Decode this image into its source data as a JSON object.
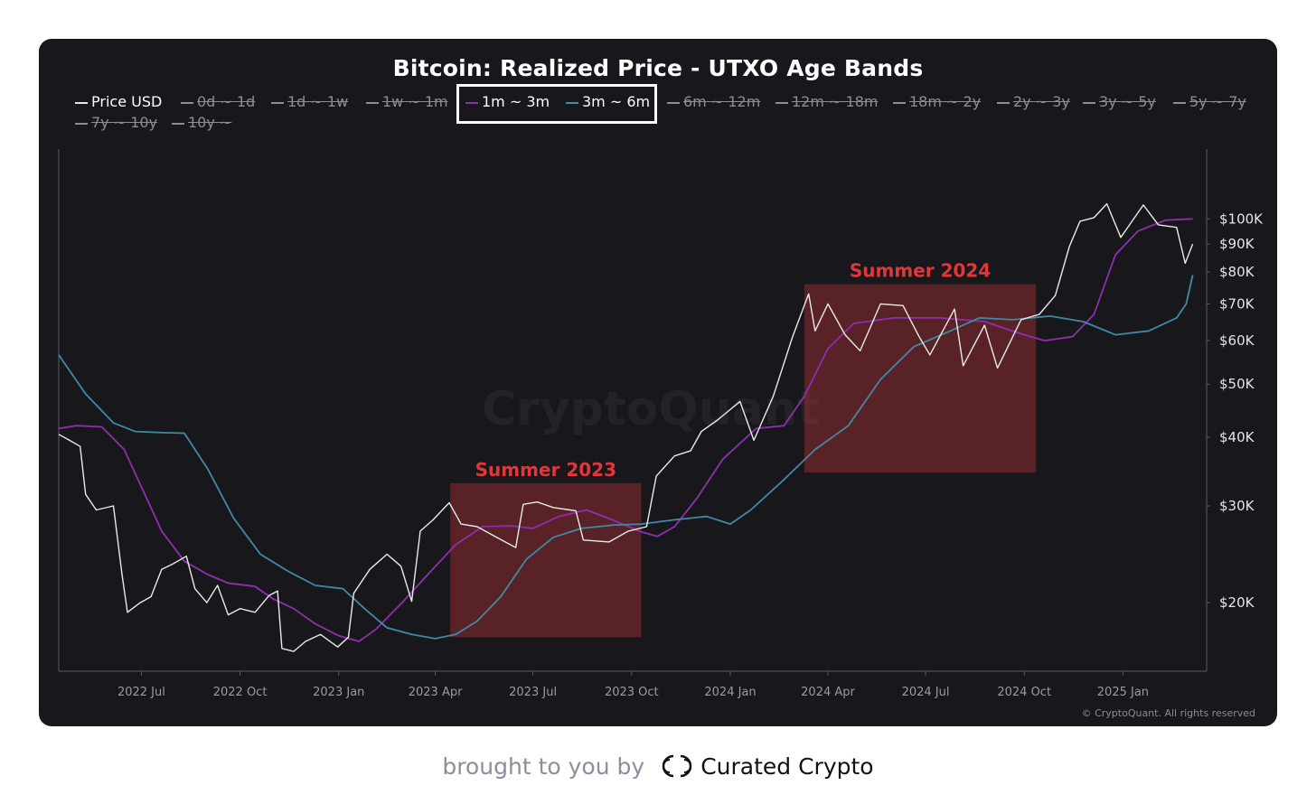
{
  "footer": {
    "prefix": "brought to you by",
    "brand": "Curated Crypto",
    "logo_icon": "curated-crypto-logo"
  },
  "watermark": "CryptoQuant",
  "copyright": "© CryptoQuant. All rights reserved",
  "chart_data": {
    "type": "line",
    "title": "Bitcoin: Realized Price - UTXO Age Bands",
    "y_scale": "log",
    "ylim": [
      15000,
      130000
    ],
    "xlim": [
      "2022-04-15",
      "2025-03-20"
    ],
    "x_ticks": [
      {
        "date": "2022-07-01",
        "label": "2022 Jul"
      },
      {
        "date": "2022-10-01",
        "label": "2022 Oct"
      },
      {
        "date": "2023-01-01",
        "label": "2023 Jan"
      },
      {
        "date": "2023-04-01",
        "label": "2023 Apr"
      },
      {
        "date": "2023-07-01",
        "label": "2023 Jul"
      },
      {
        "date": "2023-10-01",
        "label": "2023 Oct"
      },
      {
        "date": "2024-01-01",
        "label": "2024 Jan"
      },
      {
        "date": "2024-04-01",
        "label": "2024 Apr"
      },
      {
        "date": "2024-07-01",
        "label": "2024 Jul"
      },
      {
        "date": "2024-10-01",
        "label": "2024 Oct"
      },
      {
        "date": "2025-01-01",
        "label": "2025 Jan"
      }
    ],
    "y_ticks": [
      {
        "value": 20000,
        "label": "$20K"
      },
      {
        "value": 30000,
        "label": "$30K"
      },
      {
        "value": 40000,
        "label": "$40K"
      },
      {
        "value": 50000,
        "label": "$50K"
      },
      {
        "value": 60000,
        "label": "$60K"
      },
      {
        "value": 70000,
        "label": "$70K"
      },
      {
        "value": 80000,
        "label": "$80K"
      },
      {
        "value": 90000,
        "label": "$90K"
      },
      {
        "value": 100000,
        "label": "$100K"
      }
    ],
    "legend": [
      {
        "label": "Price USD",
        "color": "#e6e6e6",
        "enabled": true
      },
      {
        "label": "0d ~ 1d",
        "color": "#8c8c94",
        "enabled": false
      },
      {
        "label": "1d ~ 1w",
        "color": "#8c8c94",
        "enabled": false
      },
      {
        "label": "1w ~ 1m",
        "color": "#8c8c94",
        "enabled": false
      },
      {
        "label": "1m ~ 3m",
        "color": "#8e2fb0",
        "enabled": true
      },
      {
        "label": "3m ~ 6m",
        "color": "#3f8aa6",
        "enabled": true
      },
      {
        "label": "6m ~ 12m",
        "color": "#8c8c94",
        "enabled": false
      },
      {
        "label": "12m ~ 18m",
        "color": "#8c8c94",
        "enabled": false
      },
      {
        "label": "18m ~ 2y",
        "color": "#8c8c94",
        "enabled": false
      },
      {
        "label": "2y ~ 3y",
        "color": "#8c8c94",
        "enabled": false
      },
      {
        "label": "3y ~ 5y",
        "color": "#8c8c94",
        "enabled": false
      },
      {
        "label": "5y ~ 7y",
        "color": "#8c8c94",
        "enabled": false
      },
      {
        "label": "7y ~ 10y",
        "color": "#8c8c94",
        "enabled": false
      },
      {
        "label": "10y ~",
        "color": "#8c8c94",
        "enabled": false
      }
    ],
    "annotations": [
      {
        "label": "Summer 2023",
        "x_start": "2023-04-15",
        "x_end": "2023-10-10",
        "y_low": 17300,
        "y_high": 33000,
        "color": "#e0383a"
      },
      {
        "label": "Summer 2024",
        "x_start": "2024-03-10",
        "x_end": "2024-10-12",
        "y_low": 34500,
        "y_high": 76000,
        "color": "#e0383a"
      }
    ],
    "series": [
      {
        "name": "Price USD",
        "color": "#eaeaea",
        "points": [
          [
            "2022-04-15",
            40500
          ],
          [
            "2022-04-25",
            39500
          ],
          [
            "2022-05-05",
            38500
          ],
          [
            "2022-05-10",
            31500
          ],
          [
            "2022-05-20",
            29500
          ],
          [
            "2022-06-05",
            30000
          ],
          [
            "2022-06-13",
            22500
          ],
          [
            "2022-06-18",
            19200
          ],
          [
            "2022-06-30",
            20000
          ],
          [
            "2022-07-10",
            20500
          ],
          [
            "2022-07-20",
            23000
          ],
          [
            "2022-07-30",
            23500
          ],
          [
            "2022-08-12",
            24300
          ],
          [
            "2022-08-20",
            21200
          ],
          [
            "2022-08-31",
            20000
          ],
          [
            "2022-09-10",
            21500
          ],
          [
            "2022-09-20",
            19000
          ],
          [
            "2022-10-01",
            19500
          ],
          [
            "2022-10-15",
            19200
          ],
          [
            "2022-10-28",
            20600
          ],
          [
            "2022-11-05",
            21000
          ],
          [
            "2022-11-09",
            16500
          ],
          [
            "2022-11-20",
            16300
          ],
          [
            "2022-12-01",
            17000
          ],
          [
            "2022-12-15",
            17500
          ],
          [
            "2022-12-31",
            16600
          ],
          [
            "2023-01-10",
            17300
          ],
          [
            "2023-01-15",
            20800
          ],
          [
            "2023-01-30",
            23000
          ],
          [
            "2023-02-15",
            24500
          ],
          [
            "2023-02-28",
            23300
          ],
          [
            "2023-03-10",
            20100
          ],
          [
            "2023-03-18",
            27000
          ],
          [
            "2023-03-30",
            28300
          ],
          [
            "2023-04-14",
            30400
          ],
          [
            "2023-04-25",
            27800
          ],
          [
            "2023-05-10",
            27500
          ],
          [
            "2023-05-25",
            26500
          ],
          [
            "2023-06-15",
            25200
          ],
          [
            "2023-06-22",
            30200
          ],
          [
            "2023-07-05",
            30500
          ],
          [
            "2023-07-20",
            29800
          ],
          [
            "2023-08-10",
            29400
          ],
          [
            "2023-08-17",
            26000
          ],
          [
            "2023-09-10",
            25800
          ],
          [
            "2023-09-28",
            27000
          ],
          [
            "2023-10-15",
            27500
          ],
          [
            "2023-10-24",
            34000
          ],
          [
            "2023-11-10",
            37000
          ],
          [
            "2023-11-25",
            37800
          ],
          [
            "2023-12-05",
            41000
          ],
          [
            "2023-12-20",
            43000
          ],
          [
            "2024-01-10",
            46500
          ],
          [
            "2024-01-23",
            39500
          ],
          [
            "2024-02-10",
            47500
          ],
          [
            "2024-02-28",
            61000
          ],
          [
            "2024-03-14",
            73000
          ],
          [
            "2024-03-20",
            62500
          ],
          [
            "2024-04-01",
            70000
          ],
          [
            "2024-04-17",
            61500
          ],
          [
            "2024-05-01",
            57500
          ],
          [
            "2024-05-20",
            70000
          ],
          [
            "2024-06-10",
            69500
          ],
          [
            "2024-06-25",
            61000
          ],
          [
            "2024-07-05",
            56500
          ],
          [
            "2024-07-28",
            68500
          ],
          [
            "2024-08-05",
            54000
          ],
          [
            "2024-08-25",
            64000
          ],
          [
            "2024-09-06",
            53500
          ],
          [
            "2024-09-28",
            65500
          ],
          [
            "2024-10-15",
            67000
          ],
          [
            "2024-10-30",
            72500
          ],
          [
            "2024-11-12",
            89000
          ],
          [
            "2024-11-22",
            99000
          ],
          [
            "2024-12-05",
            100500
          ],
          [
            "2024-12-17",
            106500
          ],
          [
            "2024-12-30",
            92500
          ],
          [
            "2025-01-20",
            106000
          ],
          [
            "2025-02-03",
            97500
          ],
          [
            "2025-02-20",
            96500
          ],
          [
            "2025-02-28",
            83000
          ],
          [
            "2025-03-07",
            90000
          ]
        ]
      },
      {
        "name": "1m ~ 3m",
        "color": "#8e2fb0",
        "points": [
          [
            "2022-04-15",
            41500
          ],
          [
            "2022-05-01",
            42000
          ],
          [
            "2022-05-25",
            41800
          ],
          [
            "2022-06-15",
            38000
          ],
          [
            "2022-07-01",
            32500
          ],
          [
            "2022-07-20",
            27000
          ],
          [
            "2022-08-10",
            23800
          ],
          [
            "2022-09-01",
            22500
          ],
          [
            "2022-09-20",
            21700
          ],
          [
            "2022-10-15",
            21400
          ],
          [
            "2022-11-01",
            20300
          ],
          [
            "2022-11-20",
            19500
          ],
          [
            "2022-12-10",
            18300
          ],
          [
            "2023-01-01",
            17400
          ],
          [
            "2023-01-20",
            17000
          ],
          [
            "2023-02-05",
            17900
          ],
          [
            "2023-03-01",
            20000
          ],
          [
            "2023-03-25",
            22500
          ],
          [
            "2023-04-20",
            25500
          ],
          [
            "2023-05-15",
            27500
          ],
          [
            "2023-06-10",
            27600
          ],
          [
            "2023-07-01",
            27300
          ],
          [
            "2023-07-25",
            28700
          ],
          [
            "2023-08-20",
            29500
          ],
          [
            "2023-09-15",
            28200
          ],
          [
            "2023-10-10",
            26900
          ],
          [
            "2023-10-25",
            26400
          ],
          [
            "2023-11-10",
            27500
          ],
          [
            "2023-12-01",
            31000
          ],
          [
            "2023-12-25",
            36500
          ],
          [
            "2024-01-25",
            41500
          ],
          [
            "2024-02-20",
            42000
          ],
          [
            "2024-03-10",
            47500
          ],
          [
            "2024-04-01",
            58000
          ],
          [
            "2024-04-25",
            64500
          ],
          [
            "2024-06-01",
            66000
          ],
          [
            "2024-07-15",
            66000
          ],
          [
            "2024-08-25",
            65000
          ],
          [
            "2024-09-25",
            62000
          ],
          [
            "2024-10-20",
            60000
          ],
          [
            "2024-11-15",
            61000
          ],
          [
            "2024-12-05",
            67000
          ],
          [
            "2024-12-25",
            86000
          ],
          [
            "2025-01-15",
            95000
          ],
          [
            "2025-02-10",
            99500
          ],
          [
            "2025-03-07",
            100000
          ]
        ]
      },
      {
        "name": "3m ~ 6m",
        "color": "#3f8aa6",
        "points": [
          [
            "2022-04-15",
            56500
          ],
          [
            "2022-05-10",
            48000
          ],
          [
            "2022-06-05",
            42500
          ],
          [
            "2022-06-25",
            41000
          ],
          [
            "2022-07-20",
            40800
          ],
          [
            "2022-08-10",
            40700
          ],
          [
            "2022-09-01",
            35000
          ],
          [
            "2022-09-25",
            28500
          ],
          [
            "2022-10-20",
            24500
          ],
          [
            "2022-11-15",
            22800
          ],
          [
            "2022-12-10",
            21500
          ],
          [
            "2023-01-05",
            21200
          ],
          [
            "2023-01-25",
            19500
          ],
          [
            "2023-02-15",
            18000
          ],
          [
            "2023-03-10",
            17500
          ],
          [
            "2023-04-01",
            17200
          ],
          [
            "2023-04-20",
            17500
          ],
          [
            "2023-05-10",
            18500
          ],
          [
            "2023-06-01",
            20500
          ],
          [
            "2023-06-25",
            24000
          ],
          [
            "2023-07-20",
            26300
          ],
          [
            "2023-08-15",
            27300
          ],
          [
            "2023-09-15",
            27700
          ],
          [
            "2023-10-10",
            27800
          ],
          [
            "2023-11-10",
            28300
          ],
          [
            "2023-12-10",
            28700
          ],
          [
            "2024-01-01",
            27800
          ],
          [
            "2024-01-20",
            29500
          ],
          [
            "2024-02-20",
            33500
          ],
          [
            "2024-03-20",
            38000
          ],
          [
            "2024-04-20",
            42000
          ],
          [
            "2024-05-20",
            51000
          ],
          [
            "2024-06-20",
            58500
          ],
          [
            "2024-07-20",
            62000
          ],
          [
            "2024-08-20",
            66000
          ],
          [
            "2024-09-20",
            65500
          ],
          [
            "2024-10-25",
            66500
          ],
          [
            "2024-11-25",
            65000
          ],
          [
            "2024-12-25",
            61500
          ],
          [
            "2025-01-25",
            62500
          ],
          [
            "2025-02-20",
            66000
          ],
          [
            "2025-03-01",
            70000
          ],
          [
            "2025-03-07",
            79000
          ]
        ]
      }
    ]
  }
}
